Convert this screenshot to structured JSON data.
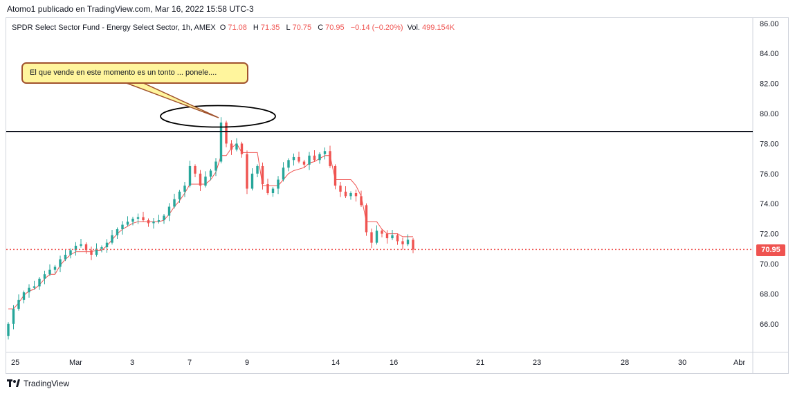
{
  "header": {
    "publish_line": "Atomo1 publicado en TradingView.com, Mar 16, 2022 15:58 UTC-3"
  },
  "legend": {
    "instrument": "SPDR Select Sector Fund - Energy Select Sector, 1h, AMEX",
    "open_label": "O",
    "open_value": "71.08",
    "high_label": "H",
    "high_value": "71.35",
    "low_label": "L",
    "low_value": "70.75",
    "close_label": "C",
    "close_value": "70.95",
    "change": "−0.14 (−0.20%)",
    "volume_label": "Vol.",
    "volume_value": "499.154K"
  },
  "annotation": {
    "text": "El que vende en este momento es un tonto ...  ponele....",
    "color": "#fff59d",
    "border_color": "#a0522d"
  },
  "price_tag": "70.95",
  "footer": {
    "brand": "TradingView"
  },
  "colors": {
    "up": "#26a69a",
    "down": "#ef5350",
    "trail_line": "#ef5350",
    "resistance": "#131722"
  },
  "chart_data": {
    "type": "candlestick",
    "y_ticks": [
      "66.00",
      "68.00",
      "70.00",
      "72.00",
      "74.00",
      "76.00",
      "78.00",
      "80.00",
      "82.00",
      "84.00",
      "86.00"
    ],
    "x_ticks": [
      "25",
      "Mar",
      "3",
      "7",
      "9",
      "14",
      "16",
      "21",
      "23",
      "28",
      "30",
      "Abr"
    ],
    "ylim": [
      64.0,
      87.0
    ],
    "resistance_level": 78.8,
    "last_price": 70.95,
    "closes": [
      66.0,
      67.0,
      67.6,
      68.1,
      68.4,
      68.5,
      69.0,
      69.3,
      69.6,
      69.8,
      70.3,
      70.6,
      70.9,
      71.2,
      71.3,
      70.9,
      70.6,
      71.0,
      71.1,
      71.4,
      71.9,
      72.3,
      72.6,
      72.8,
      73.0,
      73.1,
      72.9,
      72.7,
      72.8,
      72.9,
      73.2,
      73.8,
      74.3,
      74.8,
      75.2,
      76.5,
      76.0,
      75.2,
      75.8,
      76.2,
      76.8,
      79.4,
      78.0,
      77.6,
      78.0,
      77.3,
      75.0,
      76.0,
      76.5,
      75.3,
      74.7,
      75.0,
      75.6,
      76.4,
      76.9,
      77.1,
      76.8,
      76.6,
      77.2,
      76.9,
      77.3,
      77.5,
      76.5,
      75.2,
      74.8,
      74.5,
      74.7,
      74.5,
      73.9,
      72.1,
      71.4,
      72.2,
      72.0,
      71.7,
      71.9,
      71.5,
      71.3,
      71.6,
      70.95
    ],
    "trail_line": [
      67.0,
      67.0,
      67.4,
      67.9,
      68.2,
      68.3,
      68.6,
      69.0,
      69.3,
      69.3,
      69.9,
      70.3,
      70.6,
      70.8,
      70.8,
      70.8,
      70.8,
      70.9,
      70.9,
      71.2,
      71.6,
      72.0,
      72.3,
      72.5,
      72.7,
      72.8,
      72.8,
      72.8,
      72.8,
      72.8,
      72.9,
      73.3,
      73.8,
      74.2,
      74.7,
      75.3,
      75.3,
      75.3,
      75.3,
      75.6,
      76.1,
      77.2,
      77.2,
      77.7,
      78.0,
      77.4,
      77.4,
      77.4,
      77.4,
      75.2,
      75.2,
      75.2,
      75.2,
      75.6,
      76.0,
      76.2,
      76.3,
      76.4,
      76.7,
      76.8,
      77.0,
      77.2,
      77.2,
      75.6,
      75.6,
      75.6,
      75.6,
      75.2,
      74.5,
      72.8,
      72.8,
      72.8,
      72.3,
      72.0,
      72.0,
      72.0,
      71.8,
      71.8,
      71.8
    ]
  }
}
